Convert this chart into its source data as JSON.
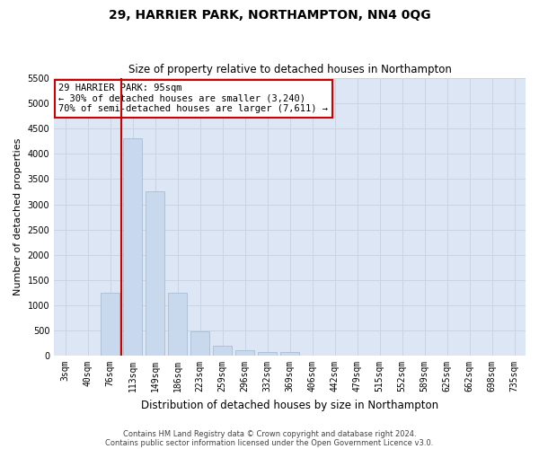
{
  "title": "29, HARRIER PARK, NORTHAMPTON, NN4 0QG",
  "subtitle": "Size of property relative to detached houses in Northampton",
  "xlabel": "Distribution of detached houses by size in Northampton",
  "ylabel": "Number of detached properties",
  "categories": [
    "3sqm",
    "40sqm",
    "76sqm",
    "113sqm",
    "149sqm",
    "186sqm",
    "223sqm",
    "259sqm",
    "296sqm",
    "332sqm",
    "369sqm",
    "406sqm",
    "442sqm",
    "479sqm",
    "515sqm",
    "552sqm",
    "589sqm",
    "625sqm",
    "662sqm",
    "698sqm",
    "735sqm"
  ],
  "values": [
    0,
    0,
    1250,
    4300,
    3250,
    1250,
    475,
    200,
    100,
    75,
    75,
    0,
    0,
    0,
    0,
    0,
    0,
    0,
    0,
    0,
    0
  ],
  "bar_color": "#c9d9ed",
  "bar_edge_color": "#a8bdd4",
  "vline_color": "#cc0000",
  "vline_index": 3,
  "ylim": [
    0,
    5500
  ],
  "yticks": [
    0,
    500,
    1000,
    1500,
    2000,
    2500,
    3000,
    3500,
    4000,
    4500,
    5000,
    5500
  ],
  "annotation_line1": "29 HARRIER PARK: 95sqm",
  "annotation_line2": "← 30% of detached houses are smaller (3,240)",
  "annotation_line3": "70% of semi-detached houses are larger (7,611) →",
  "annotation_box_color": "#cc0000",
  "annotation_box_bg": "#ffffff",
  "footer_line1": "Contains HM Land Registry data © Crown copyright and database right 2024.",
  "footer_line2": "Contains public sector information licensed under the Open Government Licence v3.0.",
  "grid_color": "#c8d4e4",
  "plot_background": "#dde6f4",
  "title_fontsize": 10,
  "subtitle_fontsize": 8.5,
  "ylabel_fontsize": 8,
  "xlabel_fontsize": 8.5,
  "tick_fontsize": 7,
  "ann_fontsize": 7.5,
  "footer_fontsize": 6
}
